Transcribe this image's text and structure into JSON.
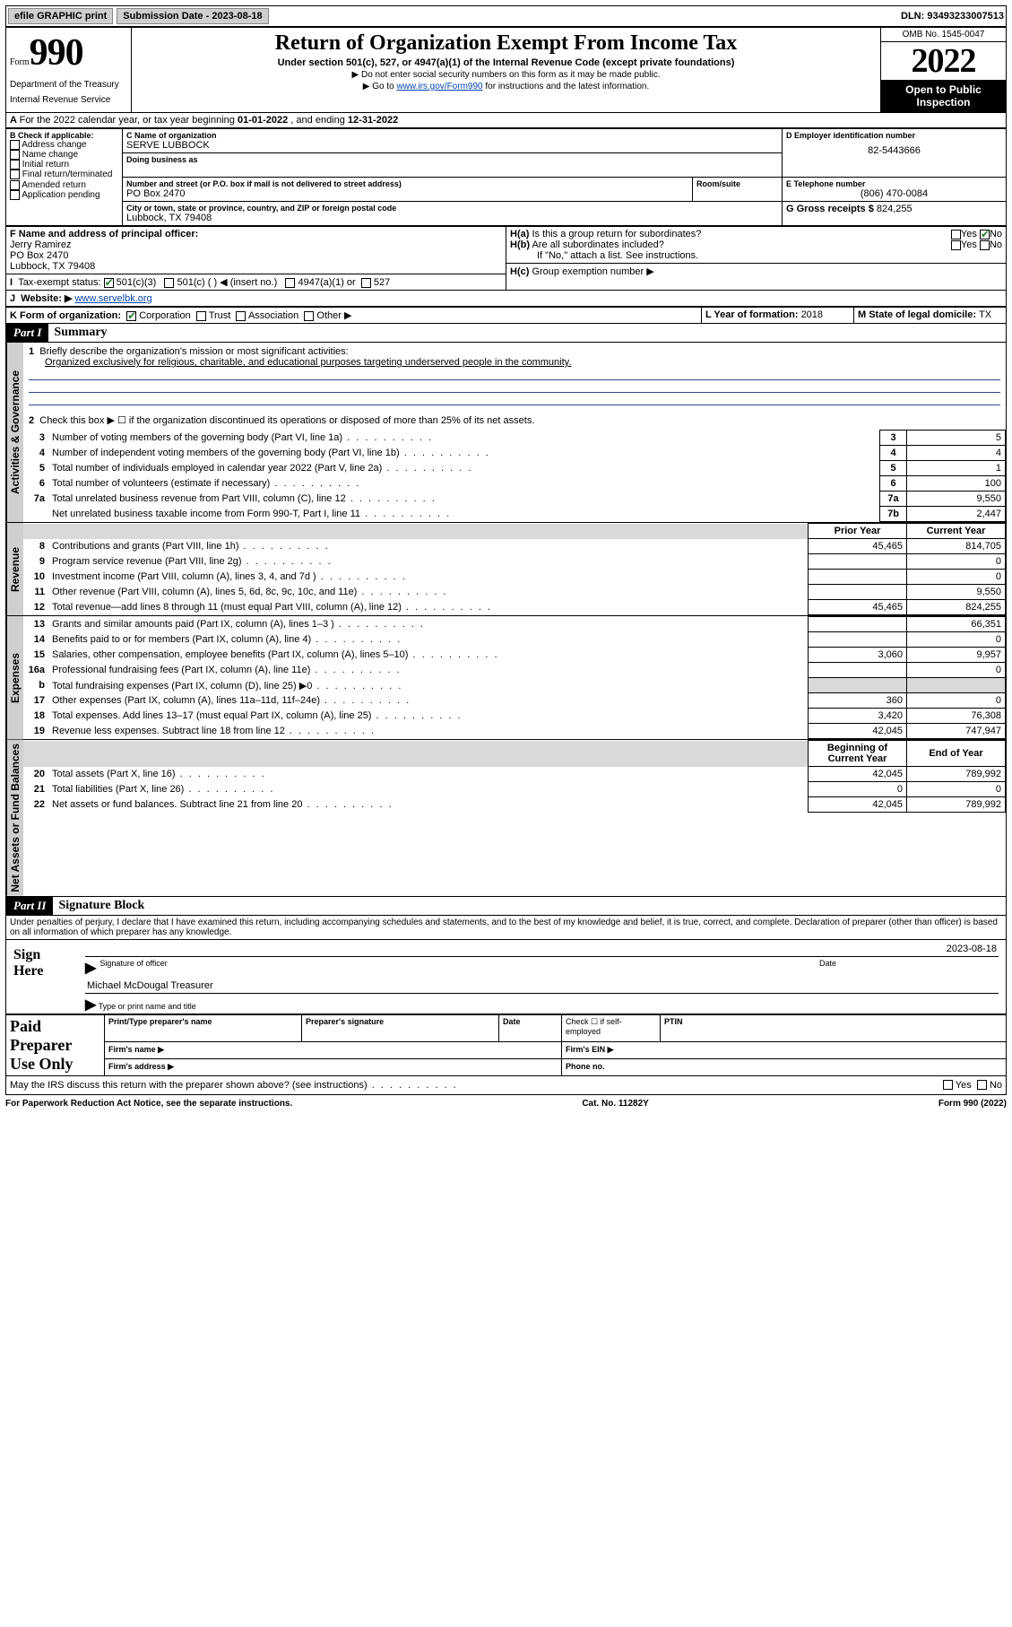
{
  "topbar": {
    "efile": "efile GRAPHIC print",
    "subdate_label": "Submission Date - ",
    "subdate": "2023-08-18",
    "dln_label": "DLN: ",
    "dln": "93493233007513"
  },
  "header": {
    "form_small": "Form",
    "form_big": "990",
    "dept": "Department of the Treasury",
    "irs": "Internal Revenue Service",
    "title": "Return of Organization Exempt From Income Tax",
    "sub": "Under section 501(c), 527, or 4947(a)(1) of the Internal Revenue Code (except private foundations)",
    "note1": "▶ Do not enter social security numbers on this form as it may be made public.",
    "note2a": "▶ Go to ",
    "note2_link": "www.irs.gov/Form990",
    "note2b": " for instructions and the latest information.",
    "omb": "OMB No. 1545-0047",
    "year": "2022",
    "open": "Open to Public Inspection"
  },
  "A": {
    "text": "For the 2022 calendar year, or tax year beginning ",
    "begin": "01-01-2022",
    "mid": " , and ending ",
    "end": "12-31-2022"
  },
  "B": {
    "label": "B Check if applicable:",
    "items": [
      "Address change",
      "Name change",
      "Initial return",
      "Final return/terminated",
      "Amended return",
      "Application pending"
    ]
  },
  "C": {
    "name_label": "C Name of organization",
    "name": "SERVE LUBBOCK",
    "dba_label": "Doing business as",
    "street_label": "Number and street (or P.O. box if mail is not delivered to street address)",
    "street": "PO Box 2470",
    "room_label": "Room/suite",
    "city_label": "City or town, state or province, country, and ZIP or foreign postal code",
    "city": "Lubbock, TX  79408"
  },
  "D": {
    "label": "D Employer identification number",
    "val": "82-5443666"
  },
  "E": {
    "label": "E Telephone number",
    "val": "(806) 470-0084"
  },
  "G": {
    "label": "G Gross receipts $ ",
    "val": "824,255"
  },
  "F": {
    "label": "F Name and address of principal officer:",
    "line1": "Jerry Ramirez",
    "line2": "PO Box 2470",
    "line3": "Lubbock, TX  79408"
  },
  "H": {
    "a": "Is this a group return for subordinates?",
    "a_no": "No",
    "b": "Are all subordinates included?",
    "b_note": "If \"No,\" attach a list. See instructions.",
    "c": "Group exemption number ▶"
  },
  "I": {
    "label": "Tax-exempt status:",
    "opt1": "501(c)(3)",
    "opt2": "501(c) (  ) ◀ (insert no.)",
    "opt3": "4947(a)(1) or",
    "opt4": "527"
  },
  "J": {
    "label": "Website: ▶",
    "val": "www.servelbk.org"
  },
  "K": {
    "label": "K Form of organization:",
    "opts": [
      "Corporation",
      "Trust",
      "Association",
      "Other ▶"
    ]
  },
  "L": {
    "label": "L Year of formation: ",
    "val": "2018"
  },
  "M": {
    "label": "M State of legal domicile: ",
    "val": "TX"
  },
  "partI": {
    "hdr": "Part I",
    "title": "Summary",
    "line1_label": "Briefly describe the organization's mission or most significant activities:",
    "line1_val": "Organized exclusively for religious, charitable, and educational purposes targeting underserved people in the community.",
    "line2": "Check this box ▶ ☐ if the organization discontinued its operations or disposed of more than 25% of its net assets.",
    "rows_gov": [
      {
        "n": "3",
        "t": "Number of voting members of the governing body (Part VI, line 1a)",
        "rn": "3",
        "v": "5"
      },
      {
        "n": "4",
        "t": "Number of independent voting members of the governing body (Part VI, line 1b)",
        "rn": "4",
        "v": "4"
      },
      {
        "n": "5",
        "t": "Total number of individuals employed in calendar year 2022 (Part V, line 2a)",
        "rn": "5",
        "v": "1"
      },
      {
        "n": "6",
        "t": "Total number of volunteers (estimate if necessary)",
        "rn": "6",
        "v": "100"
      },
      {
        "n": "7a",
        "t": "Total unrelated business revenue from Part VIII, column (C), line 12",
        "rn": "7a",
        "v": "9,550"
      },
      {
        "n": "",
        "t": "Net unrelated business taxable income from Form 990-T, Part I, line 11",
        "rn": "7b",
        "v": "2,447"
      }
    ],
    "col_prior": "Prior Year",
    "col_curr": "Current Year",
    "rows_rev": [
      {
        "n": "8",
        "t": "Contributions and grants (Part VIII, line 1h)",
        "p": "45,465",
        "c": "814,705"
      },
      {
        "n": "9",
        "t": "Program service revenue (Part VIII, line 2g)",
        "p": "",
        "c": "0"
      },
      {
        "n": "10",
        "t": "Investment income (Part VIII, column (A), lines 3, 4, and 7d )",
        "p": "",
        "c": "0"
      },
      {
        "n": "11",
        "t": "Other revenue (Part VIII, column (A), lines 5, 6d, 8c, 9c, 10c, and 11e)",
        "p": "",
        "c": "9,550"
      },
      {
        "n": "12",
        "t": "Total revenue—add lines 8 through 11 (must equal Part VIII, column (A), line 12)",
        "p": "45,465",
        "c": "824,255"
      }
    ],
    "rows_exp": [
      {
        "n": "13",
        "t": "Grants and similar amounts paid (Part IX, column (A), lines 1–3 )",
        "p": "",
        "c": "66,351"
      },
      {
        "n": "14",
        "t": "Benefits paid to or for members (Part IX, column (A), line 4)",
        "p": "",
        "c": "0"
      },
      {
        "n": "15",
        "t": "Salaries, other compensation, employee benefits (Part IX, column (A), lines 5–10)",
        "p": "3,060",
        "c": "9,957"
      },
      {
        "n": "16a",
        "t": "Professional fundraising fees (Part IX, column (A), line 11e)",
        "p": "",
        "c": "0"
      },
      {
        "n": "b",
        "t": "Total fundraising expenses (Part IX, column (D), line 25) ▶0",
        "p": "grey",
        "c": "grey"
      },
      {
        "n": "17",
        "t": "Other expenses (Part IX, column (A), lines 11a–11d, 11f–24e)",
        "p": "360",
        "c": "0"
      },
      {
        "n": "18",
        "t": "Total expenses. Add lines 13–17 (must equal Part IX, column (A), line 25)",
        "p": "3,420",
        "c": "76,308"
      },
      {
        "n": "19",
        "t": "Revenue less expenses. Subtract line 18 from line 12",
        "p": "42,045",
        "c": "747,947"
      }
    ],
    "col_beg": "Beginning of Current Year",
    "col_end": "End of Year",
    "rows_net": [
      {
        "n": "20",
        "t": "Total assets (Part X, line 16)",
        "p": "42,045",
        "c": "789,992"
      },
      {
        "n": "21",
        "t": "Total liabilities (Part X, line 26)",
        "p": "0",
        "c": "0"
      },
      {
        "n": "22",
        "t": "Net assets or fund balances. Subtract line 21 from line 20",
        "p": "42,045",
        "c": "789,992"
      }
    ],
    "tabs": {
      "gov": "Activities & Governance",
      "rev": "Revenue",
      "exp": "Expenses",
      "net": "Net Assets or Fund Balances"
    }
  },
  "partII": {
    "hdr": "Part II",
    "title": "Signature Block",
    "decl": "Under penalties of perjury, I declare that I have examined this return, including accompanying schedules and statements, and to the best of my knowledge and belief, it is true, correct, and complete. Declaration of preparer (other than officer) is based on all information of which preparer has any knowledge.",
    "sign_here": "Sign Here",
    "sig_officer": "Signature of officer",
    "sig_date": "Date",
    "sig_date_val": "2023-08-18",
    "sig_name_val": "Michael McDougal  Treasurer",
    "sig_name_label": "Type or print name and title",
    "paid": "Paid Preparer Use Only",
    "prep_name": "Print/Type preparer's name",
    "prep_sig": "Preparer's signature",
    "prep_date": "Date",
    "prep_check": "Check ☐ if self-employed",
    "ptin": "PTIN",
    "firm_name": "Firm's name   ▶",
    "firm_ein": "Firm's EIN ▶",
    "firm_addr": "Firm's address ▶",
    "phone": "Phone no.",
    "may_irs": "May the IRS discuss this return with the preparer shown above? (see instructions)",
    "yes": "Yes",
    "no": "No"
  },
  "footer": {
    "left": "For Paperwork Reduction Act Notice, see the separate instructions.",
    "mid": "Cat. No. 11282Y",
    "right": "Form 990 (2022)"
  }
}
